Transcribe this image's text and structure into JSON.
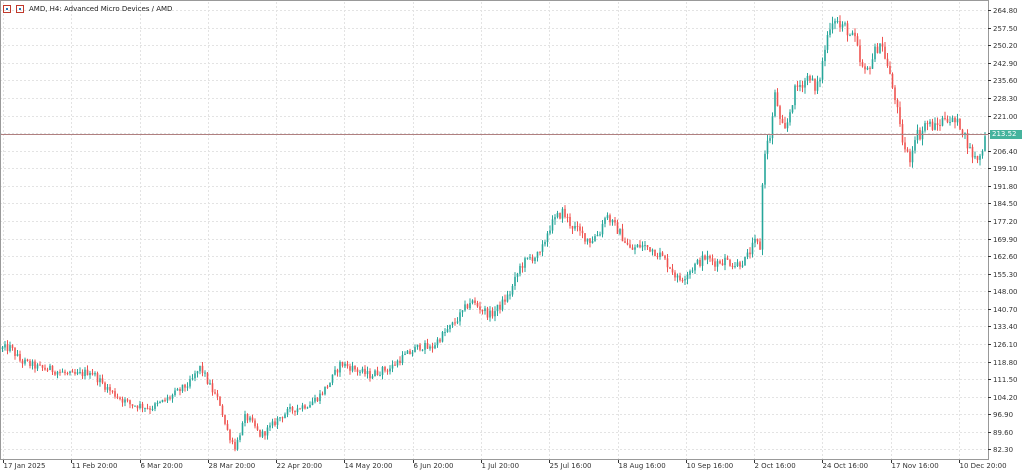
{
  "header": {
    "title": "AMD, H4:  Advanced Micro Devices / AMD"
  },
  "colors": {
    "up": "#26a69a",
    "down": "#ef5350",
    "price_line": "#b08080",
    "grid": "#e3e3e3",
    "axis": "#333333"
  },
  "current_price_label": "213.52",
  "chart_data": {
    "type": "candlestick",
    "title": "AMD, H4:  Advanced Micro Devices / AMD",
    "xlabel": "",
    "ylabel": "",
    "ylim": [
      77.88,
      268.2
    ],
    "current_price": 213.52,
    "y_ticks": [
      "264.80",
      "257.50",
      "250.20",
      "242.90",
      "235.60",
      "228.30",
      "221.00",
      "213.70",
      "206.40",
      "199.10",
      "191.80",
      "184.50",
      "177.20",
      "169.90",
      "162.60",
      "155.30",
      "148.00",
      "140.70",
      "133.40",
      "126.10",
      "118.80",
      "111.50",
      "104.20",
      "96.90",
      "89.60",
      "82.30"
    ],
    "x_ticks": [
      "17 Jan 2025",
      "11 Feb 20:00",
      "6 Mar 20:00",
      "28 Mar 20:00",
      "22 Apr 20:00",
      "14 May 20:00",
      "6 Jun 20:00",
      "1 Jul 20:00",
      "25 Jul 16:00",
      "18 Aug 16:00",
      "10 Sep 16:00",
      "2 Oct 16:00",
      "24 Oct 16:00",
      "17 Nov 16:00",
      "10 Dec 20:00"
    ],
    "grid": true,
    "close_path": [
      [
        0,
        124
      ],
      [
        10,
        124.5
      ],
      [
        20,
        119
      ],
      [
        30,
        117.5
      ],
      [
        40,
        116
      ],
      [
        50,
        115.5
      ],
      [
        60,
        114.5
      ],
      [
        70,
        113
      ],
      [
        80,
        113.5
      ],
      [
        90,
        115
      ],
      [
        100,
        110.5
      ],
      [
        110,
        106.5
      ],
      [
        120,
        103.5
      ],
      [
        130,
        101
      ],
      [
        140,
        100.5
      ],
      [
        150,
        99.5
      ],
      [
        160,
        101.5
      ],
      [
        170,
        104
      ],
      [
        180,
        107
      ],
      [
        190,
        110
      ],
      [
        200,
        116.5
      ],
      [
        210,
        108
      ],
      [
        220,
        101
      ],
      [
        225,
        92
      ],
      [
        230,
        87
      ],
      [
        235,
        83
      ],
      [
        240,
        90
      ],
      [
        245,
        96
      ],
      [
        250,
        94
      ],
      [
        255,
        91
      ],
      [
        260,
        88
      ],
      [
        270,
        91.5
      ],
      [
        280,
        96
      ],
      [
        290,
        98.5
      ],
      [
        300,
        100
      ],
      [
        310,
        101.5
      ],
      [
        320,
        105
      ],
      [
        330,
        110.5
      ],
      [
        340,
        118
      ],
      [
        350,
        116.5
      ],
      [
        360,
        114.5
      ],
      [
        370,
        113
      ],
      [
        380,
        115
      ],
      [
        390,
        116
      ],
      [
        400,
        120
      ],
      [
        410,
        122.5
      ],
      [
        420,
        125.5
      ],
      [
        430,
        124
      ],
      [
        440,
        129
      ],
      [
        450,
        133
      ],
      [
        460,
        138
      ],
      [
        470,
        144
      ],
      [
        480,
        141
      ],
      [
        490,
        138
      ],
      [
        500,
        142
      ],
      [
        510,
        147.5
      ],
      [
        520,
        158.5
      ],
      [
        530,
        162
      ],
      [
        540,
        163
      ],
      [
        548,
        174
      ],
      [
        556,
        178.5
      ],
      [
        562,
        181
      ],
      [
        570,
        176
      ],
      [
        580,
        172
      ],
      [
        590,
        169
      ],
      [
        600,
        173
      ],
      [
        605,
        180.5
      ],
      [
        612,
        176
      ],
      [
        620,
        172
      ],
      [
        630,
        165
      ],
      [
        640,
        167
      ],
      [
        650,
        166
      ],
      [
        660,
        163
      ],
      [
        670,
        158
      ],
      [
        678,
        152.5
      ],
      [
        685,
        155
      ],
      [
        695,
        159
      ],
      [
        705,
        162
      ],
      [
        715,
        160
      ],
      [
        725,
        161
      ],
      [
        735,
        159
      ],
      [
        745,
        161
      ],
      [
        755,
        168.5
      ],
      [
        760,
        166
      ],
      [
        763,
        205
      ],
      [
        770,
        213
      ],
      [
        775,
        231
      ],
      [
        780,
        217
      ],
      [
        785,
        214
      ],
      [
        790,
        224
      ],
      [
        795,
        232
      ],
      [
        800,
        234
      ],
      [
        805,
        236
      ],
      [
        810,
        238
      ],
      [
        815,
        230
      ],
      [
        820,
        238
      ],
      [
        825,
        250
      ],
      [
        830,
        260
      ],
      [
        835,
        262
      ],
      [
        840,
        257
      ],
      [
        845,
        258
      ],
      [
        850,
        254
      ],
      [
        855,
        252
      ],
      [
        860,
        242
      ],
      [
        865,
        238
      ],
      [
        870,
        243
      ],
      [
        875,
        248
      ],
      [
        880,
        252
      ],
      [
        885,
        245
      ],
      [
        890,
        236
      ],
      [
        895,
        228
      ],
      [
        900,
        214
      ],
      [
        905,
        206
      ],
      [
        910,
        203
      ],
      [
        915,
        214
      ],
      [
        920,
        213
      ],
      [
        925,
        218
      ],
      [
        930,
        217
      ],
      [
        935,
        216
      ],
      [
        940,
        218
      ],
      [
        945,
        221
      ],
      [
        950,
        219
      ],
      [
        955,
        218
      ],
      [
        960,
        217
      ],
      [
        965,
        212
      ],
      [
        970,
        206
      ],
      [
        975,
        203
      ],
      [
        980,
        204
      ],
      [
        985,
        213.52
      ]
    ]
  }
}
